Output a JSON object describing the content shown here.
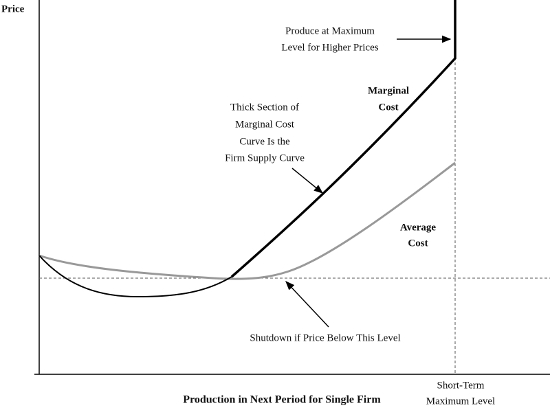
{
  "axes": {
    "y_label": "Price",
    "x_label": "Production in Next Period for Single Firm",
    "x_marker": [
      "Short-Term",
      "Maximum Level"
    ]
  },
  "curves": {
    "marginal_cost": [
      "Marginal",
      "Cost"
    ],
    "average_cost": [
      "Average",
      "Cost"
    ]
  },
  "annotations": {
    "maximum": [
      "Produce at Maximum",
      "Level for Higher Prices"
    ],
    "supply": [
      "Thick Section of",
      "Marginal Cost",
      "Curve Is the",
      "Firm Supply Curve"
    ],
    "shutdown": [
      "Shutdown if Price Below This Level"
    ]
  }
}
